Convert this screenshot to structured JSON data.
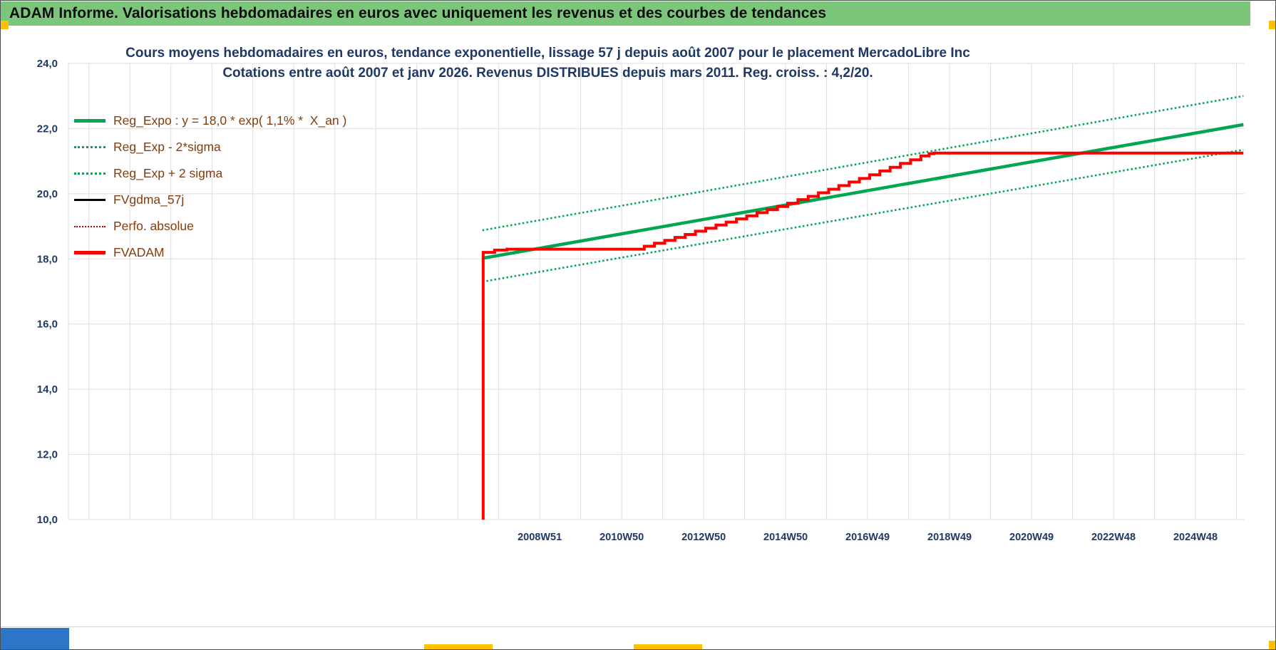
{
  "header": {
    "title": "ADAM Informe. Valorisations hebdomadaires en euros avec uniquement les revenus et des courbes de tendances"
  },
  "colors": {
    "header_bg": "#7CC67C",
    "header_text": "#0d0d0d",
    "title_text": "#1F3864",
    "legend_text": "#843C0C",
    "axis_text": "#1F3864",
    "grid": "#DEDEDE",
    "green": "#00A651",
    "red": "#FF0000",
    "dark_red": "#C00000",
    "black": "#000000",
    "handle_yellow": "#FFC000",
    "blue_rect": "#2E75C8"
  },
  "chart_data": {
    "type": "line",
    "title": "Cours moyens hebdomadaires en euros, tendance exponentielle, lissage 57 j depuis août 2007 pour le placement MercadoLibre Inc",
    "subtitle": "Cotations entre août 2007 et janv 2026. Revenus DISTRIBUES depuis mars 2011. Reg. croiss. : 4,2/20.",
    "grid": true,
    "legend_position": "top-left",
    "x_axis": {
      "min": 1997.5,
      "max": 2026.2,
      "gridline_years": [
        1998,
        1999,
        2000,
        2001,
        2002,
        2003,
        2004,
        2005,
        2006,
        2007,
        2008,
        2009,
        2010,
        2011,
        2012,
        2013,
        2014,
        2015,
        2016,
        2017,
        2018,
        2019,
        2020,
        2021,
        2022,
        2023,
        2024,
        2025,
        2026
      ],
      "ticks": [
        {
          "x": 2009,
          "label": "2008W51"
        },
        {
          "x": 2011,
          "label": "2010W50"
        },
        {
          "x": 2013,
          "label": "2012W50"
        },
        {
          "x": 2015,
          "label": "2014W50"
        },
        {
          "x": 2017,
          "label": "2016W49"
        },
        {
          "x": 2019,
          "label": "2018W49"
        },
        {
          "x": 2021,
          "label": "2020W49"
        },
        {
          "x": 2023,
          "label": "2022W48"
        },
        {
          "x": 2025,
          "label": "2024W48"
        }
      ]
    },
    "y_axis": {
      "min": 10,
      "max": 24,
      "ticks": [
        {
          "v": 10,
          "label": "10,0"
        },
        {
          "v": 12,
          "label": "12,0"
        },
        {
          "v": 14,
          "label": "14,0"
        },
        {
          "v": 16,
          "label": "16,0"
        },
        {
          "v": 18,
          "label": "18,0"
        },
        {
          "v": 20,
          "label": "20,0"
        },
        {
          "v": 22,
          "label": "22,0"
        },
        {
          "v": 24,
          "label": "24,0"
        }
      ]
    },
    "legend": [
      {
        "id": "reg-expo",
        "label": "Reg_Expo : y = 18,0 * exp( 1,1% *  X_an )",
        "color": "#00A651",
        "style": "solid",
        "weight": 5
      },
      {
        "id": "reg-exp-minus-2s",
        "label": "Reg_Exp - 2*sigma",
        "color": "#00A651",
        "style": "dotted",
        "weight": 3
      },
      {
        "id": "reg-exp-plus-2s",
        "label": "Reg_Exp + 2 sigma",
        "color": "#00A651",
        "style": "dotted",
        "weight": 3
      },
      {
        "id": "fvgdma-57j",
        "label": "FVgdma_57j",
        "color": "#000000",
        "style": "solid",
        "weight": 3
      },
      {
        "id": "perfo-absolue",
        "label": "Perfo. absolue",
        "color": "#C00000",
        "style": "dotted",
        "weight": 2
      },
      {
        "id": "fvadam",
        "label": "FVADAM",
        "color": "#FF0000",
        "style": "solid",
        "weight": 5
      }
    ],
    "series": [
      {
        "id": "reg-exp-plus-2sigma",
        "name": "Reg_Exp + 2 sigma",
        "color": "#00A651",
        "width": 2.6,
        "dash": "2.5 3.2",
        "step": false,
        "points": [
          [
            2007.6,
            18.88
          ],
          [
            2026.17,
            23.0
          ]
        ]
      },
      {
        "id": "reg-exp-minus-2sigma",
        "name": "Reg_Exp - 2*sigma",
        "color": "#00A651",
        "width": 2.6,
        "dash": "2.5 3.2",
        "step": false,
        "points": [
          [
            2007.6,
            17.3
          ],
          [
            2026.17,
            21.35
          ]
        ]
      },
      {
        "id": "reg-expo",
        "name": "Reg_Expo : y = 18,0 * exp( 1,1% *  X_an )",
        "color": "#00A651",
        "width": 4.5,
        "dash": null,
        "step": false,
        "points": [
          [
            2007.6,
            18.02
          ],
          [
            2026.17,
            22.12
          ]
        ]
      },
      {
        "id": "fvgdma-57j",
        "name": "FVgdma_57j",
        "color": "#000000",
        "width": 2,
        "dash": null,
        "step": true,
        "points": []
      },
      {
        "id": "perfo-absolue",
        "name": "Perfo. absolue",
        "color": "#C00000",
        "width": 2,
        "dash": "2 3",
        "step": true,
        "points": []
      },
      {
        "id": "fvadam",
        "name": "FVADAM",
        "color": "#FF0000",
        "width": 4,
        "dash": null,
        "step": true,
        "points": [
          [
            2007.62,
            10.0
          ],
          [
            2007.62,
            18.2
          ],
          [
            2007.9,
            18.27
          ],
          [
            2008.2,
            18.3
          ],
          [
            2011.3,
            18.3
          ],
          [
            2011.55,
            18.39
          ],
          [
            2011.8,
            18.48
          ],
          [
            2012.05,
            18.57
          ],
          [
            2012.3,
            18.66
          ],
          [
            2012.55,
            18.75
          ],
          [
            2012.8,
            18.85
          ],
          [
            2013.05,
            18.94
          ],
          [
            2013.3,
            19.04
          ],
          [
            2013.55,
            19.13
          ],
          [
            2013.8,
            19.23
          ],
          [
            2014.05,
            19.32
          ],
          [
            2014.3,
            19.42
          ],
          [
            2014.55,
            19.51
          ],
          [
            2014.8,
            19.61
          ],
          [
            2015.05,
            19.71
          ],
          [
            2015.3,
            19.82
          ],
          [
            2015.55,
            19.92
          ],
          [
            2015.8,
            20.03
          ],
          [
            2016.05,
            20.14
          ],
          [
            2016.3,
            20.25
          ],
          [
            2016.55,
            20.36
          ],
          [
            2016.8,
            20.47
          ],
          [
            2017.05,
            20.58
          ],
          [
            2017.3,
            20.7
          ],
          [
            2017.55,
            20.81
          ],
          [
            2017.8,
            20.93
          ],
          [
            2018.05,
            21.04
          ],
          [
            2018.3,
            21.16
          ],
          [
            2018.5,
            21.23
          ],
          [
            2018.62,
            21.25
          ],
          [
            2026.17,
            21.25
          ]
        ]
      }
    ]
  }
}
